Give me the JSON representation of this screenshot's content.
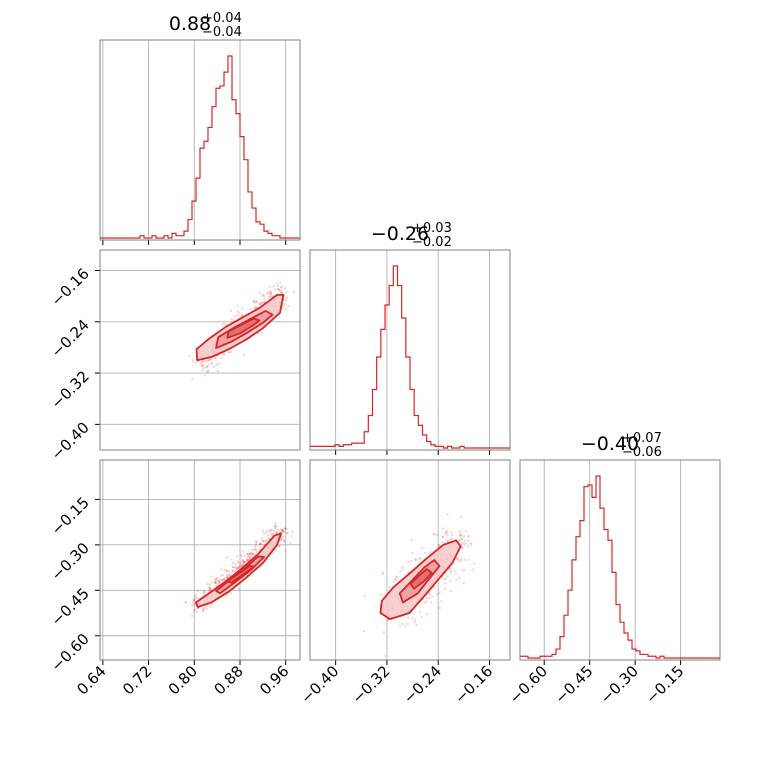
{
  "chart_data": [
    {
      "type": "histogram",
      "panel": "diag-0",
      "title": {
        "value": "0.88",
        "plus": "+0.04",
        "minus": "−0.04"
      },
      "x_ticks": [
        "0.64",
        "0.72",
        "0.80",
        "0.88",
        "0.96"
      ],
      "xlim": [
        0.635,
        0.985
      ],
      "bins": {
        "x_start": 0.635,
        "bin_width": 0.007,
        "counts": [
          0,
          0,
          0,
          0,
          0,
          0,
          0,
          0,
          0,
          0,
          1,
          0,
          0,
          1,
          0,
          0,
          1,
          0,
          2,
          1,
          1,
          3,
          8,
          16,
          26,
          39,
          42,
          48,
          57,
          65,
          66,
          72,
          79,
          60,
          54,
          44,
          34,
          20,
          13,
          7,
          6,
          3,
          2,
          1,
          1,
          0,
          0,
          0,
          0,
          0
        ]
      },
      "color": "#d62728"
    },
    {
      "type": "histogram",
      "panel": "diag-1",
      "title": {
        "value": "−0.26",
        "plus": "+0.03",
        "minus": "−0.02"
      },
      "x_ticks": [
        "−0.40",
        "−0.32",
        "−0.24",
        "−0.16"
      ],
      "xlim": [
        -0.44,
        -0.128
      ],
      "bins": {
        "x_start": -0.44,
        "bin_width": 0.0065,
        "counts": [
          1,
          1,
          1,
          1,
          1,
          1,
          2,
          1,
          2,
          2,
          3,
          3,
          3,
          10,
          20,
          36,
          56,
          73,
          88,
          100,
          112,
          100,
          80,
          56,
          36,
          20,
          14,
          8,
          4,
          2,
          1,
          1,
          0,
          1,
          0,
          0,
          1,
          0,
          0,
          0,
          0,
          0,
          0,
          0,
          0,
          0,
          0,
          0
        ]
      },
      "color": "#d62728"
    },
    {
      "type": "histogram",
      "panel": "diag-2",
      "title": {
        "value": "−0.40",
        "plus": "+0.07",
        "minus": "−0.06"
      },
      "x_ticks": [
        "−0.60",
        "−0.45",
        "−0.30",
        "−0.15"
      ],
      "xlim": [
        -0.68,
        -0.02
      ],
      "bins": {
        "x_start": -0.68,
        "bin_width": 0.0132,
        "counts": [
          1,
          1,
          0,
          0,
          0,
          1,
          1,
          1,
          2,
          5,
          12,
          24,
          38,
          55,
          68,
          77,
          96,
          97,
          90,
          102,
          84,
          72,
          66,
          48,
          30,
          20,
          14,
          10,
          5,
          4,
          2,
          2,
          1,
          1,
          0,
          1,
          0,
          0,
          0,
          0,
          0,
          0,
          0,
          0,
          0,
          0,
          0,
          0,
          0,
          0
        ]
      },
      "color": "#d62728"
    },
    {
      "type": "scatter-contour",
      "panel": "p10",
      "x_ticks": [],
      "y_ticks": [
        "−0.16",
        "−0.24",
        "−0.32",
        "−0.40"
      ],
      "xlim": [
        0.635,
        0.985
      ],
      "ylim": [
        -0.44,
        -0.128
      ],
      "cloud": {
        "x_from": 0.81,
        "y_from": -0.305,
        "x_to": 0.955,
        "y_to": -0.195,
        "spread": 0.014
      },
      "contours": [
        {
          "level": 3,
          "points": [
            [
              0.805,
              -0.3
            ],
            [
              0.83,
              -0.295
            ],
            [
              0.86,
              -0.283
            ],
            [
              0.89,
              -0.268
            ],
            [
              0.92,
              -0.25
            ],
            [
              0.95,
              -0.226
            ],
            [
              0.956,
              -0.198
            ],
            [
              0.945,
              -0.198
            ],
            [
              0.915,
              -0.218
            ],
            [
              0.885,
              -0.233
            ],
            [
              0.855,
              -0.248
            ],
            [
              0.825,
              -0.267
            ],
            [
              0.804,
              -0.283
            ]
          ]
        },
        {
          "level": 2,
          "points": [
            [
              0.838,
              -0.281
            ],
            [
              0.865,
              -0.271
            ],
            [
              0.893,
              -0.257
            ],
            [
              0.921,
              -0.241
            ],
            [
              0.937,
              -0.229
            ],
            [
              0.925,
              -0.223
            ],
            [
              0.897,
              -0.236
            ],
            [
              0.868,
              -0.25
            ],
            [
              0.842,
              -0.264
            ]
          ]
        },
        {
          "level": 1,
          "points": [
            [
              0.858,
              -0.265
            ],
            [
              0.88,
              -0.258
            ],
            [
              0.902,
              -0.246
            ],
            [
              0.914,
              -0.238
            ],
            [
              0.904,
              -0.235
            ],
            [
              0.882,
              -0.245
            ],
            [
              0.86,
              -0.255
            ]
          ]
        }
      ],
      "color": "#d62728"
    },
    {
      "type": "scatter-contour",
      "panel": "p20",
      "x_ticks": [
        "0.64",
        "0.72",
        "0.80",
        "0.88",
        "0.96"
      ],
      "y_ticks": [
        "−0.15",
        "−0.30",
        "−0.45",
        "−0.60"
      ],
      "xlim": [
        0.635,
        0.985
      ],
      "ylim": [
        -0.68,
        -0.02
      ],
      "cloud": {
        "x_from": 0.8,
        "y_from": -0.51,
        "x_to": 0.955,
        "y_to": -0.25,
        "spread": 0.012
      },
      "contours": [
        {
          "level": 3,
          "points": [
            [
              0.806,
              -0.505
            ],
            [
              0.83,
              -0.49
            ],
            [
              0.86,
              -0.455
            ],
            [
              0.89,
              -0.41
            ],
            [
              0.92,
              -0.36
            ],
            [
              0.945,
              -0.3
            ],
            [
              0.952,
              -0.262
            ],
            [
              0.94,
              -0.27
            ],
            [
              0.912,
              -0.33
            ],
            [
              0.882,
              -0.38
            ],
            [
              0.852,
              -0.425
            ],
            [
              0.822,
              -0.465
            ],
            [
              0.803,
              -0.49
            ]
          ]
        },
        {
          "level": 2,
          "points": [
            [
              0.845,
              -0.46
            ],
            [
              0.87,
              -0.425
            ],
            [
              0.898,
              -0.385
            ],
            [
              0.922,
              -0.34
            ],
            [
              0.912,
              -0.338
            ],
            [
              0.888,
              -0.378
            ],
            [
              0.86,
              -0.42
            ],
            [
              0.838,
              -0.452
            ]
          ]
        },
        {
          "level": 1,
          "points": [
            [
              0.865,
              -0.425
            ],
            [
              0.885,
              -0.398
            ],
            [
              0.905,
              -0.372
            ],
            [
              0.897,
              -0.37
            ],
            [
              0.877,
              -0.396
            ],
            [
              0.858,
              -0.42
            ]
          ]
        }
      ],
      "color": "#d62728"
    },
    {
      "type": "scatter-contour",
      "panel": "p21",
      "x_ticks": [
        "−0.40",
        "−0.32",
        "−0.24",
        "−0.16"
      ],
      "y_ticks": [],
      "xlim": [
        -0.44,
        -0.128
      ],
      "ylim": [
        -0.68,
        -0.02
      ],
      "cloud": {
        "x_from": -0.31,
        "y_from": -0.53,
        "x_to": -0.21,
        "y_to": -0.29,
        "spread": 0.022
      },
      "contours": [
        {
          "level": 3,
          "points": [
            [
              -0.315,
              -0.545
            ],
            [
              -0.285,
              -0.525
            ],
            [
              -0.262,
              -0.47
            ],
            [
              -0.24,
              -0.415
            ],
            [
              -0.218,
              -0.36
            ],
            [
              -0.205,
              -0.305
            ],
            [
              -0.212,
              -0.285
            ],
            [
              -0.232,
              -0.3
            ],
            [
              -0.258,
              -0.345
            ],
            [
              -0.285,
              -0.395
            ],
            [
              -0.31,
              -0.44
            ],
            [
              -0.328,
              -0.485
            ],
            [
              -0.33,
              -0.525
            ]
          ]
        },
        {
          "level": 2,
          "points": [
            [
              -0.295,
              -0.49
            ],
            [
              -0.272,
              -0.46
            ],
            [
              -0.255,
              -0.415
            ],
            [
              -0.238,
              -0.37
            ],
            [
              -0.246,
              -0.35
            ],
            [
              -0.262,
              -0.375
            ],
            [
              -0.282,
              -0.42
            ],
            [
              -0.3,
              -0.46
            ]
          ]
        },
        {
          "level": 1,
          "points": [
            [
              -0.278,
              -0.445
            ],
            [
              -0.262,
              -0.42
            ],
            [
              -0.25,
              -0.392
            ],
            [
              -0.258,
              -0.38
            ],
            [
              -0.27,
              -0.402
            ],
            [
              -0.283,
              -0.428
            ]
          ]
        }
      ],
      "color": "#d62728"
    }
  ]
}
